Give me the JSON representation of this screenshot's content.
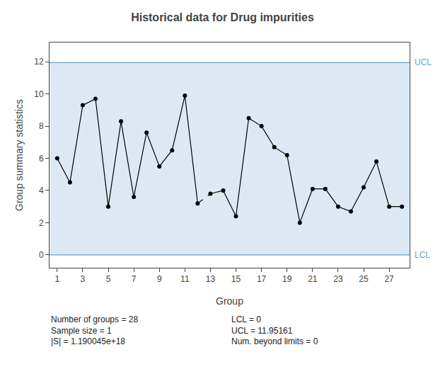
{
  "chart_data": {
    "type": "line",
    "title": "Historical data for Drug impurities",
    "x_label": "Group",
    "y_label": "Group summary statistics",
    "x": [
      1,
      2,
      3,
      4,
      5,
      6,
      7,
      8,
      9,
      10,
      11,
      12,
      13,
      14,
      15,
      16,
      17,
      18,
      19,
      20,
      21,
      22,
      23,
      24,
      25,
      26,
      27,
      28
    ],
    "values": [
      6.0,
      4.5,
      9.3,
      9.7,
      3.0,
      8.3,
      3.6,
      7.6,
      5.5,
      6.5,
      9.9,
      3.2,
      3.8,
      4.0,
      2.4,
      8.5,
      8.0,
      6.7,
      6.2,
      2.0,
      4.1,
      4.1,
      3.0,
      2.7,
      4.2,
      5.8,
      3.0,
      3.0
    ],
    "color": "black",
    "marker": "circle",
    "line_style": "solid",
    "dashed_between": [
      12,
      13
    ],
    "xlim": [
      0.4,
      28.6
    ],
    "ylim": [
      -0.8,
      13.2
    ],
    "xticks": [
      1,
      3,
      5,
      7,
      9,
      11,
      13,
      15,
      17,
      19,
      21,
      23,
      25,
      27
    ],
    "yticks": [
      0,
      2,
      4,
      6,
      8,
      10,
      12
    ],
    "grid": false,
    "control_limits": [
      {
        "name": "UCL",
        "value": 11.95161,
        "color": "#6aa0c8"
      },
      {
        "name": "LCL",
        "value": 0,
        "color": "#6aa0c8"
      }
    ],
    "band_color": "#dce9f5",
    "annotations": [
      [
        "Number of groups = 28",
        "Sample size = 1",
        "|S| = 1.190045e+18"
      ],
      [
        "LCL = 0",
        "UCL = 11.95161",
        "Num. beyond limits = 0"
      ]
    ]
  }
}
